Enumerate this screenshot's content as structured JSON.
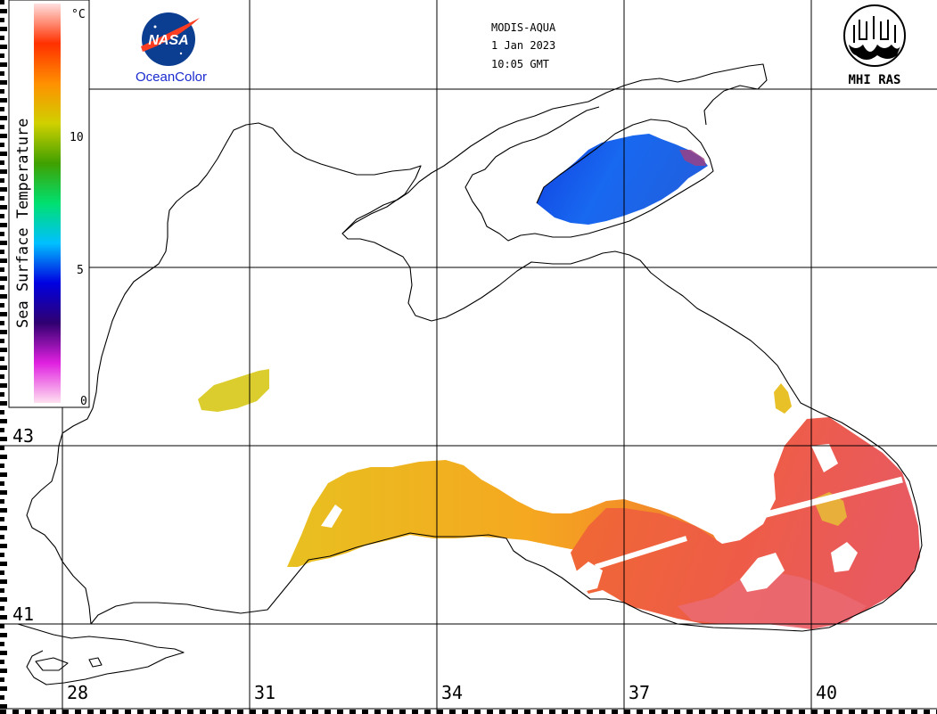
{
  "header": {
    "satellite": "MODIS-AQUA",
    "date": "1 Jan 2023",
    "time": "10:05 GMT"
  },
  "logos": {
    "nasa_text": "NASA",
    "oceancolor": "OceanColor",
    "mhi_text": "MHI RAS"
  },
  "legend": {
    "title": "Sea Surface Temperature",
    "unit": "°C",
    "ticks": [
      "10",
      "5",
      "0"
    ],
    "colors": [
      "#ffe0f0",
      "#e020e0",
      "#300070",
      "#0000e0",
      "#00c0ff",
      "#00e070",
      "#40a000",
      "#d0d000",
      "#ff9000",
      "#ff3000",
      "#ffe0e0"
    ]
  },
  "axes": {
    "longitude_labels": [
      "28",
      "31",
      "34",
      "37",
      "40"
    ],
    "latitude_labels": [
      "43",
      "41"
    ]
  },
  "colors": {
    "sst_warm_south": "#f05a38",
    "sst_hot_east": "#e85a68",
    "sst_orange": "#f59a20",
    "sst_yellow": "#dcc018",
    "sst_azov_blue": "#1858e8"
  }
}
